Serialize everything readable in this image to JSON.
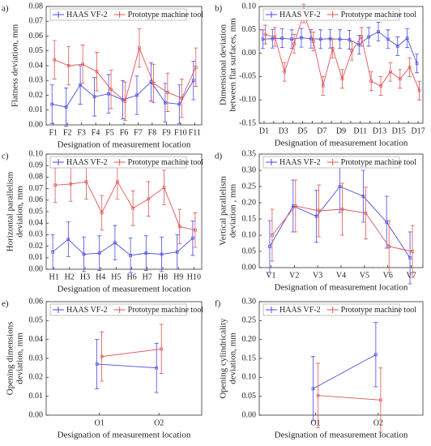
{
  "chart_data": [
    {
      "type": "line",
      "label": "a)",
      "ylabel": [
        "Flatness deviation, mm"
      ],
      "xlabel": "Designation of measurement location",
      "categories": [
        "F1",
        "F2",
        "F3",
        "F4",
        "F5",
        "F6",
        "F7",
        "F8",
        "F9",
        "F10",
        "F11"
      ],
      "ylim": [
        0,
        0.08
      ],
      "yticks": [
        {
          "value": 0,
          "label": "0.00"
        },
        0.01,
        0.02,
        0.03,
        0.04,
        0.05,
        0.06,
        0.07,
        0.08
      ],
      "series": [
        {
          "name": "HAAS VF-2",
          "color": "#4a4ae6",
          "values": [
            0.014,
            0.012,
            0.027,
            0.019,
            0.021,
            0.017,
            0.02,
            0.029,
            0.015,
            0.014,
            0.03
          ],
          "errors": [
            0.013,
            0.013,
            0.013,
            0.013,
            0.013,
            0.013,
            0.013,
            0.013,
            0.013,
            0.013,
            0.013
          ]
        },
        {
          "name": "Prototype machine tool",
          "color": "#e05555",
          "values": [
            0.044,
            0.04,
            0.041,
            0.036,
            0.024,
            0.016,
            0.052,
            0.028,
            0.022,
            0.018,
            0.039
          ],
          "errors": [
            0.013,
            0.013,
            0.013,
            0.013,
            0.013,
            0.013,
            0.013,
            0.013,
            0.013,
            0.013,
            0.013
          ]
        }
      ]
    },
    {
      "type": "line",
      "label": "b)",
      "ylabel": [
        "Dimensional deviation",
        "between flat surfaces, mm"
      ],
      "xlabel": "Designation of measurement location",
      "categories": [
        "D1",
        null,
        "D3",
        null,
        "D5",
        null,
        "D7",
        null,
        "D9",
        null,
        "D11",
        null,
        "D13",
        null,
        "D15",
        null,
        "D17"
      ],
      "ylim": [
        -0.15,
        0.1
      ],
      "yticks": [
        -0.15,
        {
          "value": -0.1,
          "label": "-0.10"
        },
        -0.05,
        {
          "value": 0,
          "label": "0.00"
        },
        0.05,
        {
          "value": 0.1,
          "label": "0.10"
        }
      ],
      "series": [
        {
          "name": "HAAS VF-2",
          "color": "#4a4ae6",
          "values": [
            0.03,
            0.031,
            0.032,
            0.03,
            0.033,
            0.031,
            0.03,
            0.031,
            0.03,
            0.029,
            0.018,
            0.035,
            0.046,
            0.03,
            0.015,
            0.032,
            -0.022
          ],
          "errors": [
            0.02,
            0.02,
            0.02,
            0.02,
            0.02,
            0.02,
            0.02,
            0.02,
            0.02,
            0.02,
            0.02,
            0.02,
            0.02,
            0.02,
            0.02,
            0.02,
            0.02
          ]
        },
        {
          "name": "Prototype machine tool",
          "color": "#e05555",
          "values": [
            0.04,
            0.035,
            -0.04,
            0.02,
            0.085,
            0.025,
            -0.07,
            0.01,
            -0.055,
            0.005,
            0.035,
            -0.06,
            -0.07,
            -0.04,
            -0.055,
            -0.03,
            -0.08
          ],
          "errors": [
            0.02,
            0.02,
            0.02,
            0.02,
            0.02,
            0.02,
            0.02,
            0.02,
            0.02,
            0.02,
            0.02,
            0.02,
            0.02,
            0.02,
            0.02,
            0.02,
            0.02
          ]
        }
      ]
    },
    {
      "type": "line",
      "label": "c)",
      "ylabel": [
        "Horizontal parallelism",
        "deviation, mm"
      ],
      "xlabel": "Designation of measurement location",
      "categories": [
        "H1",
        "H2",
        "H3",
        "H4",
        "H5",
        "H6",
        "H7",
        "H8",
        "H9",
        "H10"
      ],
      "ylim": [
        0,
        0.1
      ],
      "yticks": [
        {
          "value": 0,
          "label": "0.00"
        },
        0.01,
        0.02,
        0.03,
        0.04,
        0.05,
        0.06,
        0.07,
        0.08,
        0.09,
        {
          "value": 0.1,
          "label": "0.10"
        }
      ],
      "series": [
        {
          "name": "HAAS VF-2",
          "color": "#4a4ae6",
          "values": [
            0.015,
            0.026,
            0.013,
            0.014,
            0.023,
            0.012,
            0.014,
            0.013,
            0.015,
            0.027
          ],
          "errors": [
            0.015,
            0.015,
            0.015,
            0.015,
            0.015,
            0.015,
            0.015,
            0.015,
            0.015,
            0.015
          ]
        },
        {
          "name": "Prototype machine tool",
          "color": "#e05555",
          "values": [
            0.073,
            0.074,
            0.076,
            0.049,
            0.076,
            0.053,
            0.061,
            0.071,
            0.037,
            0.034
          ],
          "errors": [
            0.015,
            0.015,
            0.015,
            0.015,
            0.015,
            0.015,
            0.015,
            0.015,
            0.015,
            0.015
          ]
        }
      ]
    },
    {
      "type": "line",
      "label": "d)",
      "ylabel": [
        "Vertical parallelism",
        "deviation , mm"
      ],
      "xlabel": "Designation of measurement location",
      "categories": [
        "V1",
        "V2",
        "V3",
        "V4",
        "V5",
        "V6",
        "V7"
      ],
      "ylim": [
        0,
        0.35
      ],
      "yticks": [
        {
          "value": 0,
          "label": "0.00"
        },
        0.05,
        {
          "value": 0.1,
          "label": "0.10"
        },
        0.15,
        {
          "value": 0.2,
          "label": "0.20"
        },
        0.25,
        {
          "value": 0.3,
          "label": "0.30"
        },
        0.35
      ],
      "series": [
        {
          "name": "HAAS VF-2",
          "color": "#4a4ae6",
          "values": [
            0.065,
            0.19,
            0.158,
            0.25,
            0.22,
            0.14,
            0.03
          ],
          "errors": [
            0.08,
            0.08,
            0.08,
            0.08,
            0.08,
            0.08,
            0.08
          ]
        },
        {
          "name": "Prototype machine tool",
          "color": "#e05555",
          "values": [
            0.1,
            0.19,
            0.175,
            0.18,
            0.168,
            0.065,
            0.05
          ],
          "errors": [
            0.08,
            0.08,
            0.08,
            0.08,
            0.08,
            0.08,
            0.08
          ]
        }
      ]
    },
    {
      "type": "line",
      "label": "e)",
      "ylabel": [
        "Opening dimensions",
        "deviation, mm"
      ],
      "xlabel": "Designation of measurement location",
      "categories": [
        "O1",
        "O2"
      ],
      "ylim": [
        0,
        0.06
      ],
      "yticks": [
        {
          "value": 0,
          "label": "0.00"
        },
        0.01,
        0.02,
        0.03,
        0.04,
        0.05,
        0.06
      ],
      "series": [
        {
          "name": "HAAS VF-2",
          "color": "#4a4ae6",
          "values": [
            0.027,
            0.025
          ],
          "errors": [
            0.013,
            0.013
          ]
        },
        {
          "name": "Prototype machine tool",
          "color": "#e05555",
          "values": [
            0.031,
            0.035
          ],
          "errors": [
            0.013,
            0.013
          ]
        }
      ]
    },
    {
      "type": "line",
      "label": "f)",
      "ylabel": [
        "Opening cylindricality",
        "deviation, mm"
      ],
      "xlabel": "Designation of measurement location",
      "categories": [
        "O1",
        "O2"
      ],
      "ylim": [
        0,
        0.3
      ],
      "yticks": [
        {
          "value": 0,
          "label": "0.00"
        },
        0.05,
        {
          "value": 0.1,
          "label": "0.10"
        },
        0.15,
        {
          "value": 0.2,
          "label": "0.20"
        },
        0.25,
        {
          "value": 0.3,
          "label": "0.30"
        }
      ],
      "series": [
        {
          "name": "HAAS VF-2",
          "color": "#4a4ae6",
          "values": [
            0.07,
            0.16
          ],
          "errors": [
            0.085,
            0.085
          ]
        },
        {
          "name": "Prototype machine tool",
          "color": "#e05555",
          "values": [
            0.052,
            0.04
          ],
          "errors": [
            0.085,
            0.085
          ]
        }
      ]
    }
  ]
}
